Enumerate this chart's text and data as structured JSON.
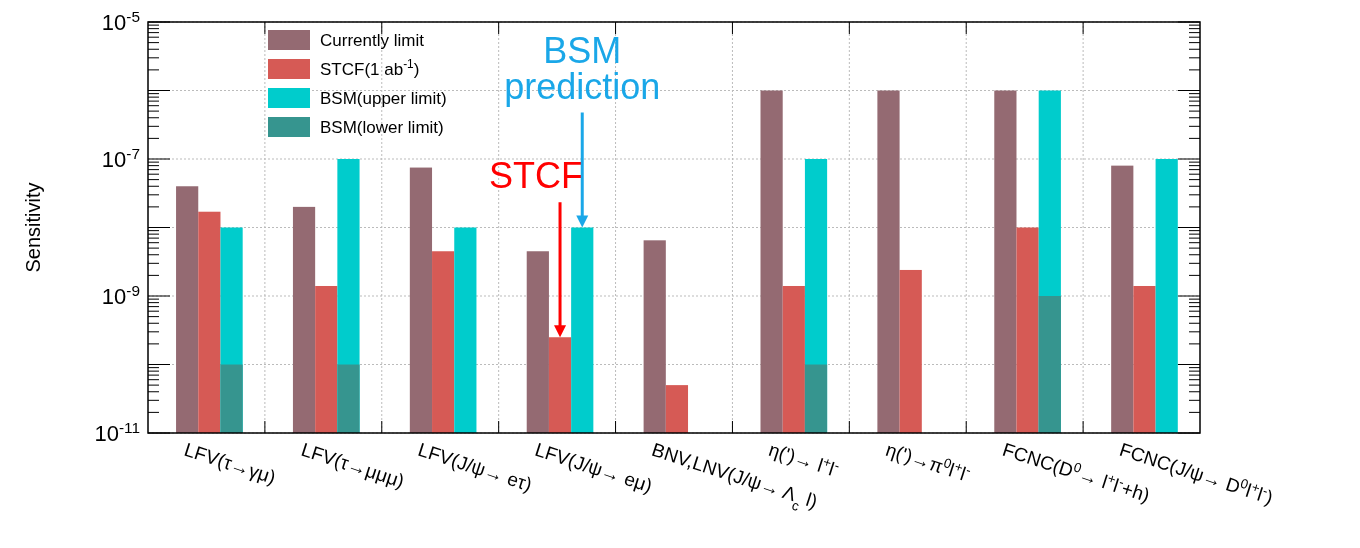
{
  "chart_data": {
    "type": "bar",
    "ylabel": "Sensitivity",
    "log": true,
    "grid": true,
    "legend": "top left",
    "categories": [
      "LFV(τ→γμ)",
      "LFV(τ→μμμ)",
      "LFV(J/ψ→ eτ)",
      "LFV(J/ψ→ eμ)",
      "BNV,LNV(J/ψ→ Λ$_{c}$ l)",
      "η(')→ l$^{+}$l$^{-}$",
      "η(')→π$^{0}$l$^{+}$l$^{-}$",
      "FCNC(D$^{0}$→ l$^{+}$l$^{-}$+h)",
      "FCNC(J/ψ→ D$^{0}$l$^{+}$l$^{-}$)"
    ],
    "series": [
      {
        "name": "Currently limit",
        "color": "#946a72",
        "values": [
          4e-08,
          2e-08,
          7.5e-08,
          4.5e-09,
          6.5e-09,
          1e-06,
          1e-06,
          1e-06,
          8e-08
        ]
      },
      {
        "name": "STCF(1 ab$^{-1}$)",
        "color": "#d65a55",
        "values": [
          1.7e-08,
          1.4e-09,
          4.5e-09,
          2.5e-10,
          5e-11,
          1.4e-09,
          2.4e-09,
          1e-08,
          1.4e-09
        ]
      },
      {
        "name": "BSM(upper limit)",
        "color": "#00cccc",
        "values": [
          1e-08,
          1e-07,
          1e-08,
          1e-08,
          null,
          1e-07,
          null,
          1e-06,
          1e-07
        ]
      },
      {
        "name": "BSM(lower limit)",
        "color": "#36958f",
        "values": [
          1e-10,
          1e-10,
          null,
          null,
          null,
          1e-10,
          null,
          1e-09,
          null
        ]
      }
    ],
    "ylim": [
      1e-11,
      1e-05
    ],
    "yticks": [
      {
        "value": 1e-11,
        "label": "10$^{-11}$"
      },
      {
        "value": 1e-10,
        "label": null
      },
      {
        "value": 1e-09,
        "label": "10$^{-9}$"
      },
      {
        "value": 1e-08,
        "label": null
      },
      {
        "value": 1e-07,
        "label": "10$^{-7}$"
      },
      {
        "value": 1e-06,
        "label": null
      },
      {
        "value": 1e-05,
        "label": "10$^{-5}$"
      }
    ],
    "annotations": [
      "STCF",
      "BSM prediction"
    ]
  }
}
